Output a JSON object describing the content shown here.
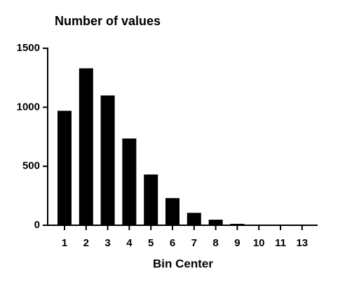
{
  "chart_data": {
    "type": "bar",
    "title": "Number of values",
    "x_label": "Bin Center",
    "categories": [
      "1",
      "2",
      "3",
      "4",
      "5",
      "6",
      "7",
      "8",
      "9",
      "10",
      "11",
      "13"
    ],
    "values": [
      970,
      1330,
      1100,
      735,
      430,
      230,
      105,
      47,
      12,
      3,
      1,
      1
    ],
    "color": "#000000",
    "ylim": [
      0,
      1500
    ],
    "yticks": [
      0,
      500,
      1000,
      1500
    ],
    "grid": false
  }
}
